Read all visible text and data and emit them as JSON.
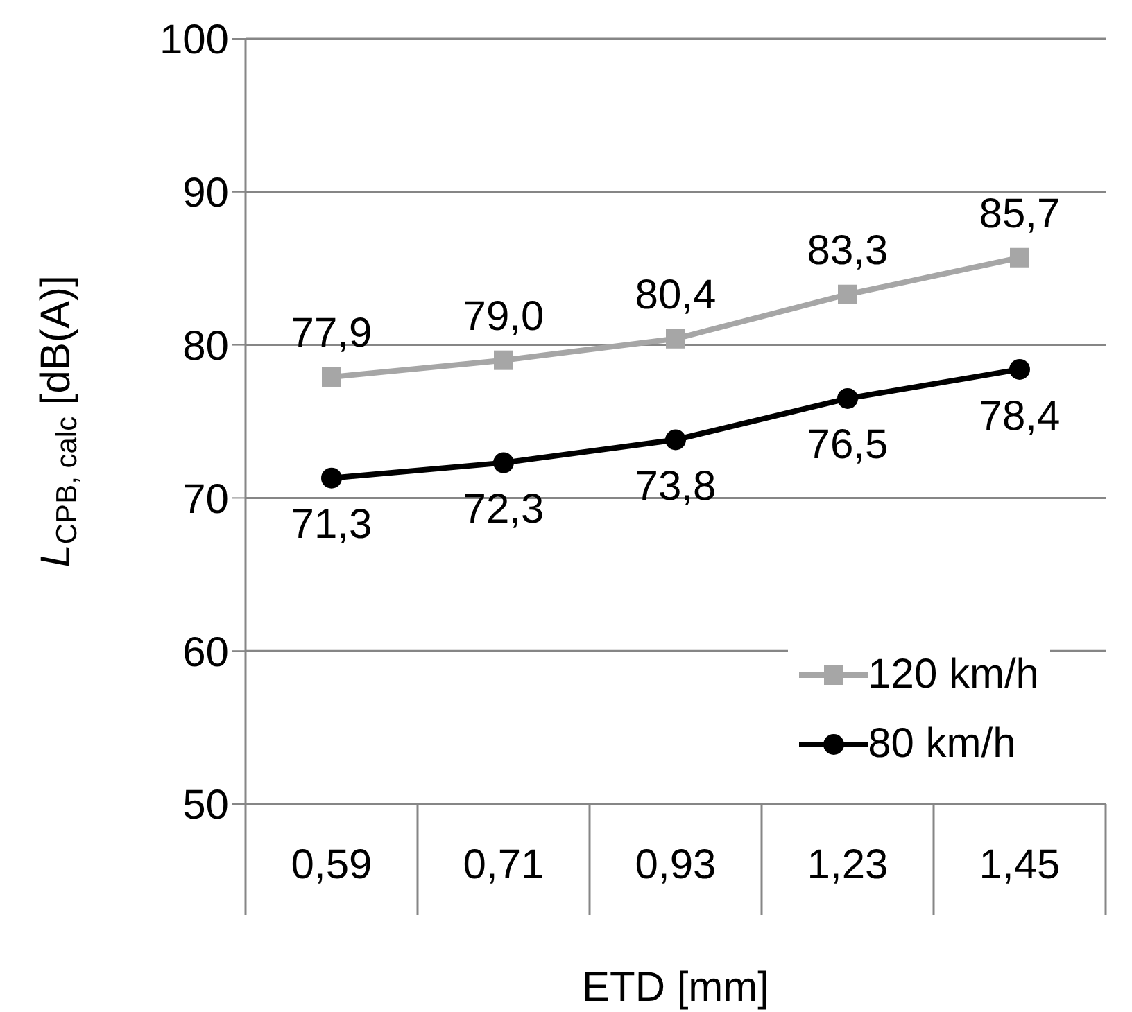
{
  "chart_data": {
    "type": "line",
    "xlabel": "ETD [mm]",
    "ylabel": "L$_{CPB, calc}$ [dB(A)]",
    "categories": [
      "0,59",
      "0,71",
      "0,93",
      "1,23",
      "1,45"
    ],
    "series": [
      {
        "name": "120 km/h",
        "color": "#a6a6a6",
        "marker": "square",
        "values": [
          77.9,
          79.0,
          80.4,
          83.3,
          85.7
        ],
        "value_labels": [
          "77,9",
          "79,0",
          "80,4",
          "83,3",
          "85,7"
        ]
      },
      {
        "name": "80 km/h",
        "color": "#000000",
        "marker": "circle",
        "values": [
          71.3,
          72.3,
          73.8,
          76.5,
          78.4
        ],
        "value_labels": [
          "71,3",
          "72,3",
          "73,8",
          "76,5",
          "78,4"
        ]
      }
    ],
    "ylim": [
      50,
      100
    ],
    "yticks": [
      50,
      60,
      70,
      80,
      90,
      100
    ],
    "grid": "y",
    "legend": "bottom right",
    "line_style": "solid"
  }
}
